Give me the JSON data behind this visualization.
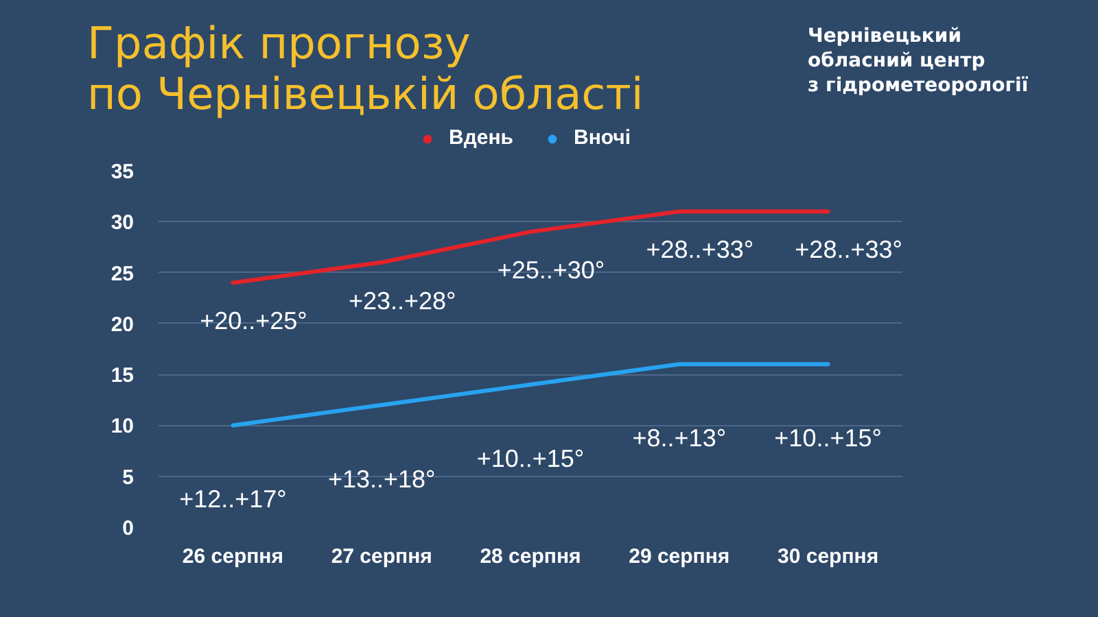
{
  "chart_data": {
    "type": "line",
    "title": "Графік прогнозу\nпо Чернівецькій області",
    "categories": [
      "26 серпня",
      "27 серпня",
      "28 серпня",
      "29 серпня",
      "30 серпня"
    ],
    "series": [
      {
        "name": "Вдень",
        "color": "#e3232a",
        "values": [
          24,
          26,
          29,
          31,
          31
        ]
      },
      {
        "name": "Вночі",
        "color": "#27a3f0",
        "values": [
          10,
          12,
          14,
          16,
          16
        ]
      }
    ],
    "ylim": [
      0,
      35
    ],
    "yticks": [
      0,
      5,
      10,
      15,
      20,
      25,
      30,
      35
    ],
    "grid": "y",
    "legend": "top",
    "line_style": "solid",
    "annotations": [
      "Чернівецький\nобласний центр\nз гідрометеорології",
      "+20..+25°",
      "+23..+28°",
      "+25..+30°",
      "+28..+33°",
      "+28..+33°",
      "+12..+17°",
      "+13..+18°",
      "+10..+15°",
      "+8..+13°",
      "+10..+15°"
    ]
  }
}
